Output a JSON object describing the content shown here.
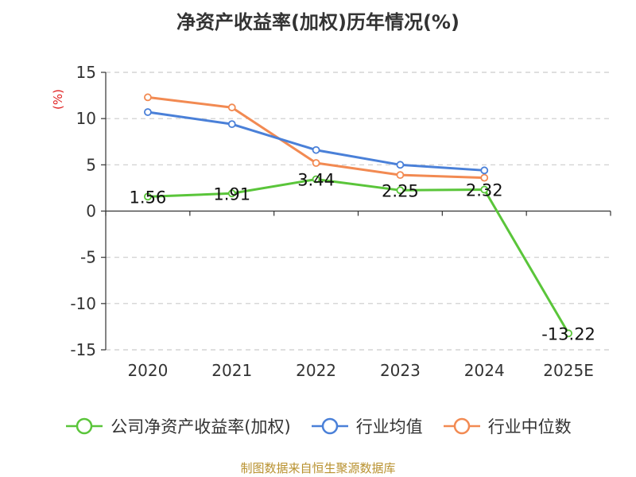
{
  "chart_data": {
    "type": "line",
    "title": "净资产收益率(加权)历年情况(%)",
    "ylabel": "(%)",
    "ylim": [
      -15,
      15
    ],
    "yticks": [
      15,
      10,
      5,
      0,
      -5,
      -10,
      -15
    ],
    "ytick_labels": [
      "15",
      "10",
      "5",
      "0",
      "-5",
      "-10",
      "-15"
    ],
    "categories": [
      "2020",
      "2021",
      "2022",
      "2023",
      "2024",
      "2025E"
    ],
    "series": [
      {
        "name": "公司净资产收益率(加权)",
        "color": "#5ac53a",
        "values": [
          1.56,
          1.91,
          3.44,
          2.25,
          2.32,
          -13.22
        ],
        "labels": [
          "1.56",
          "1.91",
          "3.44",
          "2.25",
          "2.32",
          "-13.22"
        ]
      },
      {
        "name": "行业均值",
        "color": "#4a80d8",
        "values": [
          10.7,
          9.4,
          6.6,
          5.0,
          4.4,
          null
        ]
      },
      {
        "name": "行业中位数",
        "color": "#f28a52",
        "values": [
          12.3,
          11.2,
          5.2,
          3.9,
          3.6,
          null
        ]
      }
    ],
    "grid": true,
    "legend": "bottom"
  },
  "source": "制图数据来自恒生聚源数据库"
}
